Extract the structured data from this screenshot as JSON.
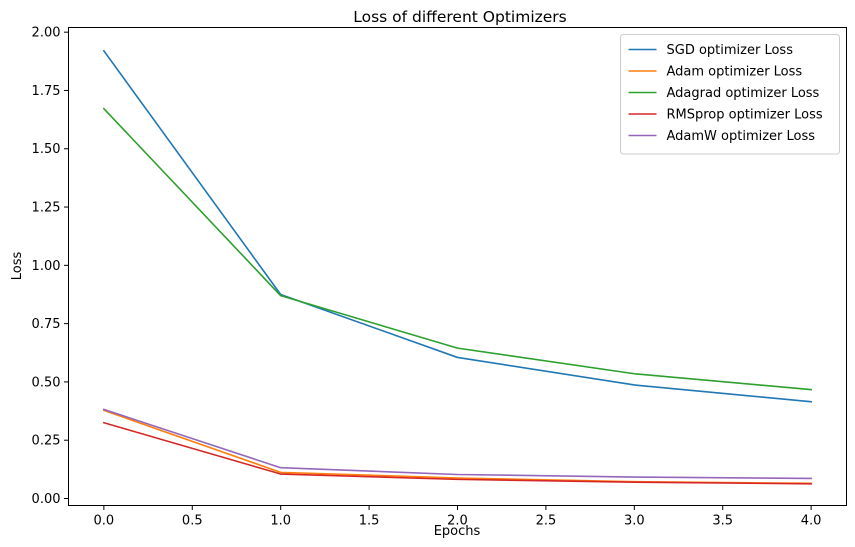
{
  "chart_data": {
    "type": "line",
    "title": "Loss of different Optimizers",
    "xlabel": "Epochs",
    "ylabel": "Loss",
    "xlim": [
      -0.2,
      4.2
    ],
    "ylim": [
      -0.03,
      2.02
    ],
    "x_ticks": [
      0.0,
      0.5,
      1.0,
      1.5,
      2.0,
      2.5,
      3.0,
      3.5,
      4.0
    ],
    "x_tick_labels": [
      "0.0",
      "0.5",
      "1.0",
      "1.5",
      "2.0",
      "2.5",
      "3.0",
      "3.5",
      "4.0"
    ],
    "y_ticks": [
      0.0,
      0.25,
      0.5,
      0.75,
      1.0,
      1.25,
      1.5,
      1.75,
      2.0
    ],
    "y_tick_labels": [
      "0.00",
      "0.25",
      "0.50",
      "0.75",
      "1.00",
      "1.25",
      "1.50",
      "1.75",
      "2.00"
    ],
    "grid": false,
    "legend_position": "top-right",
    "x": [
      0,
      1,
      2,
      3,
      4
    ],
    "series": [
      {
        "name": "SGD optimizer Loss",
        "color": "#1f77b4",
        "values": [
          1.92,
          0.875,
          0.605,
          0.487,
          0.415
        ]
      },
      {
        "name": "Adam optimizer Loss",
        "color": "#ff7f0e",
        "values": [
          0.378,
          0.112,
          0.088,
          0.072,
          0.065
        ]
      },
      {
        "name": "Adagrad optimizer Loss",
        "color": "#2ca02c",
        "values": [
          1.672,
          0.87,
          0.645,
          0.535,
          0.467
        ]
      },
      {
        "name": "RMSprop optimizer Loss",
        "color": "#d62728",
        "values": [
          0.325,
          0.105,
          0.082,
          0.07,
          0.063
        ]
      },
      {
        "name": "AdamW optimizer Loss",
        "color": "#9467bd",
        "values": [
          0.382,
          0.132,
          0.103,
          0.092,
          0.086
        ]
      }
    ]
  }
}
